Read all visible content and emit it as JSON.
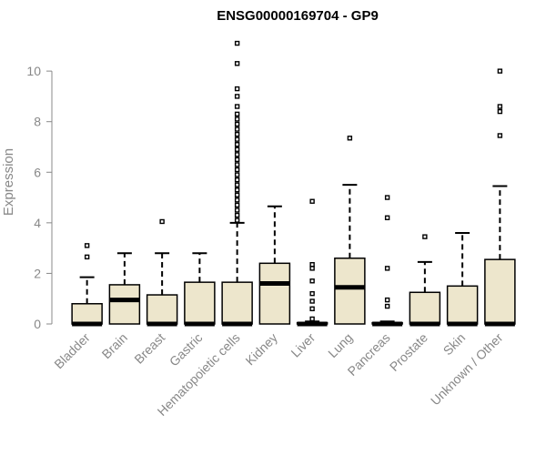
{
  "colors": {
    "box_fill": "#ede6cc",
    "box_stroke": "#000000",
    "axis": "#888888"
  },
  "chart_data": {
    "type": "boxplot",
    "title": "ENSG00000169704 - GP9",
    "ylabel": "Expression",
    "ylim": [
      0,
      11.3
    ],
    "yticks": [
      0,
      2,
      4,
      6,
      8,
      10
    ],
    "categories": [
      "Bladder",
      "Brain",
      "Breast",
      "Gastric",
      "Hematopoietic cells",
      "Kidney",
      "Liver",
      "Lung",
      "Pancreas",
      "Prostate",
      "Skin",
      "Unknown / Other"
    ],
    "boxes": [
      {
        "q1": 0,
        "median": 0,
        "q3": 0.8,
        "whisker_low": 0,
        "whisker_high": 1.85,
        "outliers": [
          2.65,
          3.1
        ]
      },
      {
        "q1": 0,
        "median": 0.95,
        "q3": 1.55,
        "whisker_low": 0,
        "whisker_high": 2.8,
        "outliers": []
      },
      {
        "q1": 0,
        "median": 0,
        "q3": 1.15,
        "whisker_low": 0,
        "whisker_high": 2.8,
        "outliers": [
          4.05
        ]
      },
      {
        "q1": 0,
        "median": 0,
        "q3": 1.65,
        "whisker_low": 0,
        "whisker_high": 2.8,
        "outliers": []
      },
      {
        "q1": 0,
        "median": 0,
        "q3": 1.65,
        "whisker_low": 0,
        "whisker_high": 4.0,
        "outliers": [
          4.1,
          4.3,
          4.5,
          4.7,
          4.9,
          5.1,
          5.3,
          5.5,
          5.7,
          5.9,
          6.1,
          6.3,
          6.5,
          6.7,
          6.9,
          7.1,
          7.3,
          7.5,
          7.7,
          7.9,
          8.1,
          8.3,
          8.6,
          9.0,
          9.3,
          10.3,
          11.1
        ]
      },
      {
        "q1": 0,
        "median": 1.6,
        "q3": 2.4,
        "whisker_low": 0,
        "whisker_high": 4.65,
        "outliers": []
      },
      {
        "q1": 0,
        "median": 0,
        "q3": 0.05,
        "whisker_low": 0,
        "whisker_high": 0.1,
        "outliers": [
          0.2,
          0.6,
          0.9,
          1.2,
          1.7,
          2.2,
          2.35,
          4.85
        ]
      },
      {
        "q1": 0,
        "median": 1.45,
        "q3": 2.6,
        "whisker_low": 0,
        "whisker_high": 5.5,
        "outliers": [
          7.35
        ]
      },
      {
        "q1": 0,
        "median": 0,
        "q3": 0.05,
        "whisker_low": 0,
        "whisker_high": 0.1,
        "outliers": [
          0.7,
          0.95,
          2.2,
          4.2,
          5.0
        ]
      },
      {
        "q1": 0,
        "median": 0,
        "q3": 1.25,
        "whisker_low": 0,
        "whisker_high": 2.45,
        "outliers": [
          3.45
        ]
      },
      {
        "q1": 0,
        "median": 0,
        "q3": 1.5,
        "whisker_low": 0,
        "whisker_high": 3.6,
        "outliers": []
      },
      {
        "q1": 0,
        "median": 0,
        "q3": 2.55,
        "whisker_low": 0,
        "whisker_high": 5.45,
        "outliers": [
          7.45,
          8.4,
          8.6,
          10.0
        ]
      }
    ]
  }
}
